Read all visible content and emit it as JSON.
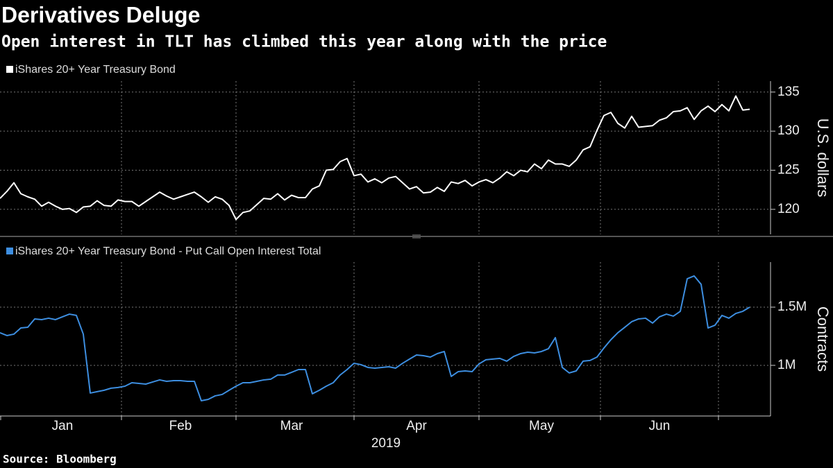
{
  "title": "Derivatives Deluge",
  "subtitle": "Open interest in TLT has climbed this year along with the price",
  "source": "Source: Bloomberg",
  "chart_data": [
    {
      "type": "line",
      "ylabel": "U.S. dollars",
      "ylim": [
        116.8,
        136.4
      ],
      "yticks": [
        120,
        125,
        130,
        135
      ],
      "grid": true,
      "series": [
        {
          "name": "iShares 20+ Year Treasury Bond",
          "color": "#ffffff",
          "values": [
            121.4,
            122.3,
            123.4,
            122.0,
            121.6,
            121.3,
            120.4,
            120.9,
            120.4,
            120.0,
            120.1,
            119.6,
            120.3,
            120.4,
            121.1,
            120.5,
            120.4,
            121.2,
            121.0,
            121.0,
            120.4,
            121.0,
            121.6,
            122.2,
            121.7,
            121.3,
            121.6,
            121.9,
            122.2,
            121.6,
            120.9,
            121.6,
            121.3,
            120.5,
            118.7,
            119.6,
            119.8,
            120.6,
            121.4,
            121.3,
            122.0,
            121.2,
            121.8,
            121.5,
            121.5,
            122.6,
            123.0,
            125.0,
            125.1,
            126.1,
            126.5,
            124.3,
            124.5,
            123.5,
            123.9,
            123.4,
            124.0,
            124.2,
            123.4,
            122.6,
            122.9,
            122.1,
            122.2,
            122.8,
            122.3,
            123.5,
            123.3,
            123.7,
            123.0,
            123.5,
            123.8,
            123.4,
            124.0,
            124.8,
            124.3,
            125.0,
            124.8,
            125.8,
            125.2,
            126.3,
            125.8,
            125.8,
            125.5,
            126.3,
            127.6,
            128.0,
            130.1,
            132.0,
            132.4,
            131.0,
            130.4,
            131.9,
            130.5,
            130.6,
            130.7,
            131.4,
            131.7,
            132.5,
            132.6,
            133.0,
            131.5,
            132.6,
            133.2,
            132.5,
            133.4,
            132.6,
            134.5,
            132.7,
            132.8
          ]
        }
      ]
    },
    {
      "type": "line",
      "ylabel": "Contracts",
      "xlabel": "2019",
      "ylim": [
        565000,
        1887000
      ],
      "yticks": [
        {
          "value": 1000000,
          "label": "1M"
        },
        {
          "value": 1500000,
          "label": "1.5M"
        }
      ],
      "grid": true,
      "categories": [
        null,
        null,
        null,
        null,
        null,
        null,
        null,
        null,
        null,
        "Jan",
        null,
        null,
        null,
        null,
        null,
        null,
        null,
        null,
        null,
        null,
        null,
        null,
        null,
        null,
        null,
        null,
        "Feb",
        null,
        null,
        null,
        null,
        null,
        null,
        null,
        null,
        null,
        null,
        null,
        null,
        null,
        null,
        null,
        "Mar",
        null,
        null,
        null,
        null,
        null,
        null,
        null,
        null,
        null,
        null,
        null,
        null,
        null,
        null,
        null,
        null,
        null,
        "Apr",
        null,
        null,
        null,
        null,
        null,
        null,
        null,
        null,
        null,
        null,
        null,
        null,
        null,
        null,
        null,
        null,
        null,
        "May",
        null,
        null,
        null,
        null,
        null,
        null,
        null,
        null,
        null,
        null,
        null,
        null,
        null,
        null,
        null,
        null,
        "Jun",
        null,
        null,
        null,
        null,
        null,
        null,
        null,
        null,
        null,
        null,
        null,
        null,
        null
      ],
      "series": [
        {
          "name": "iShares 20+ Year Treasury Bond - Put Call Open Interest Total",
          "color": "#3d8ee0",
          "values": [
            1280000,
            1256000,
            1268000,
            1321000,
            1327000,
            1399000,
            1393000,
            1405000,
            1393000,
            1417000,
            1440000,
            1429000,
            1268000,
            762000,
            774000,
            786000,
            804000,
            810000,
            821000,
            851000,
            845000,
            839000,
            857000,
            875000,
            863000,
            869000,
            869000,
            863000,
            863000,
            696000,
            708000,
            738000,
            750000,
            786000,
            821000,
            851000,
            851000,
            863000,
            875000,
            881000,
            917000,
            917000,
            940000,
            964000,
            964000,
            756000,
            786000,
            821000,
            851000,
            917000,
            964000,
            1018000,
            1006000,
            982000,
            976000,
            982000,
            988000,
            976000,
            1018000,
            1054000,
            1089000,
            1083000,
            1071000,
            1101000,
            1119000,
            905000,
            946000,
            952000,
            946000,
            1012000,
            1048000,
            1054000,
            1060000,
            1036000,
            1077000,
            1101000,
            1113000,
            1107000,
            1119000,
            1143000,
            1238000,
            982000,
            935000,
            952000,
            1036000,
            1042000,
            1071000,
            1149000,
            1220000,
            1280000,
            1327000,
            1375000,
            1399000,
            1405000,
            1363000,
            1417000,
            1440000,
            1423000,
            1464000,
            1744000,
            1768000,
            1696000,
            1321000,
            1345000,
            1429000,
            1405000,
            1446000,
            1464000,
            1500000
          ]
        }
      ]
    }
  ]
}
